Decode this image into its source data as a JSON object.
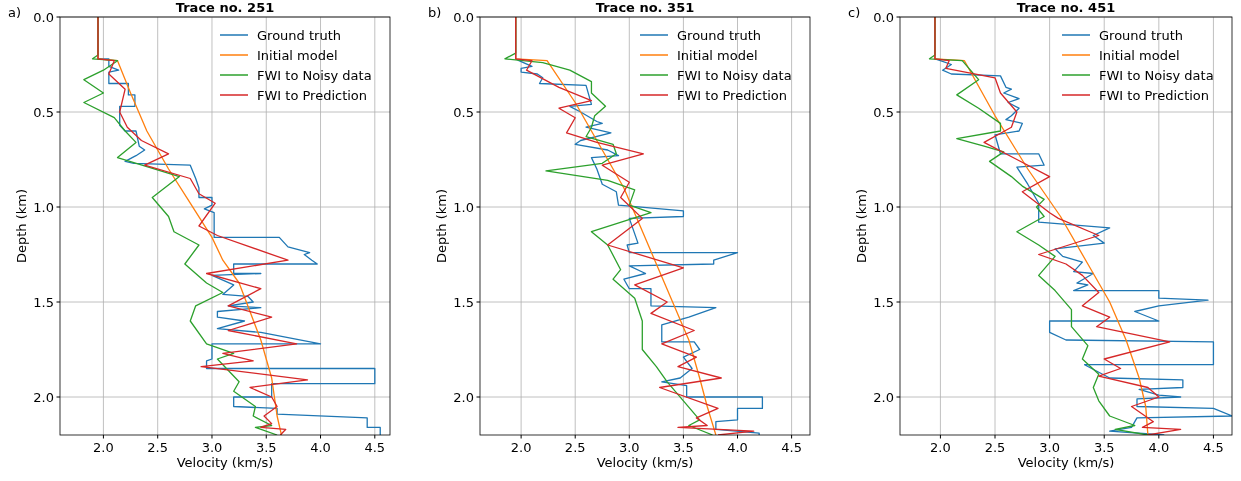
{
  "chart_data": [
    {
      "type": "line",
      "title": "Trace no. 251",
      "xlabel": "Velocity (km/s)",
      "ylabel": "Depth (km)",
      "annotations": [
        "a)"
      ],
      "xlim": [
        1.6,
        4.64
      ],
      "ylim": [
        2.2,
        0
      ],
      "xticks": [
        {
          "value": 2,
          "label": "2.0"
        },
        {
          "value": 2.5,
          "label": "2.5"
        },
        {
          "value": 3,
          "label": "3.0"
        },
        {
          "value": 3.5,
          "label": "3.5"
        },
        {
          "value": 4,
          "label": "4.0"
        },
        {
          "value": 4.5,
          "label": "4.5"
        }
      ],
      "yticks": [
        {
          "value": 0,
          "label": "0.0"
        },
        {
          "value": 0.5,
          "label": "0.5"
        },
        {
          "value": 1,
          "label": "1.0"
        },
        {
          "value": 1.5,
          "label": "1.5"
        },
        {
          "value": 2,
          "label": "2.0"
        }
      ],
      "grid": true,
      "legend": "top right",
      "marker": "none",
      "line_style": "solid",
      "series": [
        {
          "name": "Ground truth",
          "color": "#1f77b4",
          "x": [
            1.95,
            1.95,
            2.05,
            2.05,
            2.14,
            2.05,
            2.05,
            2.23,
            2.23,
            2.29,
            2.29,
            2.15,
            2.15,
            2.2,
            2.3,
            2.33,
            2.38,
            2.3,
            2.2,
            2.28,
            2.8,
            2.85,
            2.88,
            2.88,
            3.0,
            3.0,
            2.93,
            3.02,
            3.02,
            3.62,
            3.7,
            3.9,
            3.85,
            3.92,
            3.97,
            3.2,
            3.2,
            3.45,
            3.0,
            3.2,
            3.1,
            3.33,
            3.38,
            3.15,
            3.45,
            3.05,
            3.05,
            3.3,
            3.05,
            3.45,
            4.0,
            3.0,
            3.0,
            2.95,
            2.95,
            4.5,
            4.5,
            3.55,
            3.55,
            3.2,
            3.2,
            3.6,
            3.6,
            4.43,
            4.43,
            4.55,
            4.55
          ],
          "values": [
            0,
            0.22,
            0.22,
            0.26,
            0.28,
            0.29,
            0.35,
            0.35,
            0.41,
            0.41,
            0.47,
            0.47,
            0.57,
            0.6,
            0.6,
            0.68,
            0.7,
            0.73,
            0.76,
            0.77,
            0.78,
            0.85,
            0.9,
            0.95,
            0.95,
            0.99,
            1.01,
            1.03,
            1.16,
            1.16,
            1.21,
            1.24,
            1.25,
            1.28,
            1.3,
            1.3,
            1.35,
            1.35,
            1.36,
            1.41,
            1.46,
            1.47,
            1.5,
            1.52,
            1.53,
            1.55,
            1.58,
            1.6,
            1.64,
            1.66,
            1.72,
            1.72,
            1.8,
            1.81,
            1.85,
            1.85,
            1.93,
            1.93,
            2.0,
            2.0,
            2.05,
            2.06,
            2.09,
            2.11,
            2.16,
            2.16,
            2.2
          ]
        },
        {
          "name": "Initial model",
          "color": "#ff7f0e",
          "x": [
            1.95,
            1.95,
            2.13,
            2.25,
            2.4,
            2.6,
            2.8,
            3.0,
            3.1,
            3.25,
            3.35,
            3.45,
            3.55,
            3.6,
            3.64
          ],
          "values": [
            0,
            0.22,
            0.23,
            0.4,
            0.6,
            0.8,
            0.98,
            1.16,
            1.28,
            1.4,
            1.55,
            1.7,
            1.9,
            2.1,
            2.2
          ]
        },
        {
          "name": "FWI to Noisy data",
          "color": "#2ca02c",
          "x": [
            1.95,
            1.95,
            1.9,
            2.13,
            2.0,
            1.82,
            2.0,
            1.82,
            2.1,
            2.2,
            2.3,
            2.13,
            2.7,
            2.45,
            2.6,
            2.65,
            2.88,
            2.75,
            2.95,
            3.1,
            2.85,
            2.8,
            2.95,
            3.2,
            3.05,
            3.25,
            3.2,
            3.4,
            3.38,
            3.55,
            3.4,
            3.6
          ],
          "values": [
            0,
            0.2,
            0.22,
            0.23,
            0.28,
            0.33,
            0.4,
            0.45,
            0.53,
            0.6,
            0.66,
            0.74,
            0.84,
            0.95,
            1.05,
            1.13,
            1.2,
            1.3,
            1.4,
            1.45,
            1.52,
            1.6,
            1.72,
            1.77,
            1.8,
            1.92,
            1.97,
            2.05,
            2.1,
            2.15,
            2.16,
            2.2
          ]
        },
        {
          "name": "FWI to Prediction",
          "color": "#d62728",
          "x": [
            1.95,
            1.95,
            2.1,
            2.05,
            2.2,
            2.15,
            2.22,
            2.35,
            2.6,
            2.38,
            2.8,
            2.88,
            3.03,
            2.88,
            3.05,
            3.7,
            2.95,
            3.45,
            3.15,
            3.55,
            3.15,
            3.78,
            3.1,
            3.38,
            2.9,
            3.88,
            3.35,
            3.55,
            3.6,
            3.48,
            3.55,
            3.45,
            3.68,
            3.63
          ],
          "values": [
            0,
            0.22,
            0.23,
            0.3,
            0.38,
            0.5,
            0.58,
            0.65,
            0.72,
            0.78,
            0.85,
            0.93,
            0.98,
            1.1,
            1.15,
            1.28,
            1.35,
            1.43,
            1.52,
            1.58,
            1.65,
            1.72,
            1.77,
            1.81,
            1.84,
            1.91,
            1.95,
            2.0,
            2.05,
            2.1,
            2.14,
            2.16,
            2.17,
            2.2
          ]
        }
      ]
    },
    {
      "type": "line",
      "title": "Trace no. 351",
      "xlabel": "Velocity (km/s)",
      "ylabel": "Depth (km)",
      "annotations": [
        "b)"
      ],
      "xlim": [
        1.62,
        4.67
      ],
      "ylim": [
        2.2,
        0
      ],
      "xticks": [
        {
          "value": 2,
          "label": "2.0"
        },
        {
          "value": 2.5,
          "label": "2.5"
        },
        {
          "value": 3,
          "label": "3.0"
        },
        {
          "value": 3.5,
          "label": "3.5"
        },
        {
          "value": 4,
          "label": "4.0"
        },
        {
          "value": 4.5,
          "label": "4.5"
        }
      ],
      "yticks": [
        {
          "value": 0,
          "label": "0.0"
        },
        {
          "value": 0.5,
          "label": "0.5"
        },
        {
          "value": 1,
          "label": "1.0"
        },
        {
          "value": 1.5,
          "label": "1.5"
        },
        {
          "value": 2,
          "label": "2.0"
        }
      ],
      "grid": true,
      "legend": "top right",
      "marker": "none",
      "line_style": "solid",
      "series": [
        {
          "name": "Ground truth",
          "color": "#1f77b4",
          "x": [
            1.95,
            1.95,
            1.98,
            2.1,
            2.0,
            2.0,
            2.15,
            2.2,
            2.17,
            2.6,
            2.65,
            2.45,
            2.55,
            2.7,
            2.75,
            2.6,
            2.83,
            2.55,
            2.5,
            2.8,
            2.9,
            2.65,
            2.7,
            2.75,
            2.88,
            2.9,
            3.5,
            3.5,
            3.0,
            3.08,
            2.98,
            3.0,
            4.0,
            3.78,
            3.78,
            3.0,
            3.15,
            2.95,
            3.0,
            3.2,
            3.2,
            3.8,
            3.55,
            3.3,
            3.3,
            3.6,
            3.65,
            3.5,
            3.58,
            3.47,
            3.3,
            3.53,
            3.53,
            4.23,
            4.23,
            4.0,
            4.0,
            3.8,
            3.8,
            4.2,
            4.2
          ],
          "values": [
            0,
            0.22,
            0.23,
            0.26,
            0.27,
            0.29,
            0.3,
            0.32,
            0.35,
            0.36,
            0.46,
            0.47,
            0.5,
            0.55,
            0.56,
            0.58,
            0.61,
            0.65,
            0.67,
            0.7,
            0.73,
            0.74,
            0.8,
            0.88,
            0.92,
            0.99,
            1.02,
            1.05,
            1.06,
            1.19,
            1.2,
            1.24,
            1.24,
            1.28,
            1.3,
            1.31,
            1.35,
            1.38,
            1.43,
            1.43,
            1.52,
            1.53,
            1.58,
            1.62,
            1.71,
            1.71,
            1.75,
            1.79,
            1.85,
            1.9,
            1.92,
            1.94,
            2.0,
            2.0,
            2.06,
            2.06,
            2.12,
            2.13,
            2.17,
            2.19,
            2.2
          ]
        },
        {
          "name": "Initial model",
          "color": "#ff7f0e",
          "x": [
            1.95,
            1.95,
            2.24,
            2.5,
            2.75,
            2.95,
            3.1,
            3.25,
            3.4,
            3.55,
            3.65,
            3.72,
            3.8
          ],
          "values": [
            0,
            0.22,
            0.23,
            0.45,
            0.7,
            0.9,
            1.1,
            1.3,
            1.5,
            1.7,
            1.9,
            2.05,
            2.2
          ]
        },
        {
          "name": "FWI to Noisy data",
          "color": "#2ca02c",
          "x": [
            1.95,
            1.95,
            1.85,
            2.2,
            2.45,
            2.65,
            2.65,
            2.78,
            2.68,
            2.65,
            2.6,
            2.85,
            2.88,
            2.75,
            2.23,
            2.8,
            3.05,
            3.0,
            3.2,
            2.65,
            2.8,
            2.92,
            2.85,
            3.05,
            3.12,
            3.12,
            3.25,
            3.35,
            3.5,
            3.65,
            3.55,
            3.77
          ],
          "values": [
            0,
            0.19,
            0.22,
            0.24,
            0.28,
            0.34,
            0.4,
            0.47,
            0.52,
            0.58,
            0.63,
            0.67,
            0.72,
            0.77,
            0.81,
            0.86,
            0.91,
            0.99,
            1.03,
            1.13,
            1.2,
            1.33,
            1.38,
            1.48,
            1.6,
            1.75,
            1.84,
            1.92,
            2.02,
            2.12,
            2.15,
            2.2
          ]
        },
        {
          "name": "FWI to Prediction",
          "color": "#d62728",
          "x": [
            1.95,
            1.95,
            2.1,
            2.05,
            2.35,
            2.65,
            2.35,
            2.5,
            2.42,
            2.7,
            3.13,
            2.75,
            3.0,
            2.92,
            3.12,
            2.8,
            3.5,
            3.05,
            3.35,
            3.2,
            3.6,
            3.3,
            3.62,
            3.45,
            3.85,
            3.28,
            3.82,
            3.62,
            3.72,
            3.45,
            4.15,
            3.82
          ],
          "values": [
            0,
            0.22,
            0.23,
            0.28,
            0.37,
            0.44,
            0.48,
            0.53,
            0.61,
            0.66,
            0.72,
            0.78,
            0.87,
            0.95,
            1.06,
            1.2,
            1.32,
            1.41,
            1.5,
            1.56,
            1.65,
            1.72,
            1.79,
            1.84,
            1.9,
            1.95,
            2.06,
            2.11,
            2.15,
            2.16,
            2.18,
            2.2
          ]
        }
      ]
    },
    {
      "type": "line",
      "title": "Trace no. 451",
      "xlabel": "Velocity (km/s)",
      "ylabel": "Depth (km)",
      "annotations": [
        "c)"
      ],
      "xlim": [
        1.63,
        4.67
      ],
      "ylim": [
        2.2,
        0
      ],
      "xticks": [
        {
          "value": 2,
          "label": "2.0"
        },
        {
          "value": 2.5,
          "label": "2.5"
        },
        {
          "value": 3,
          "label": "3.0"
        },
        {
          "value": 3.5,
          "label": "3.5"
        },
        {
          "value": 4,
          "label": "4.0"
        },
        {
          "value": 4.5,
          "label": "4.5"
        }
      ],
      "yticks": [
        {
          "value": 0,
          "label": "0.0"
        },
        {
          "value": 0.5,
          "label": "0.5"
        },
        {
          "value": 1,
          "label": "1.0"
        },
        {
          "value": 1.5,
          "label": "1.5"
        },
        {
          "value": 2,
          "label": "2.0"
        }
      ],
      "grid": true,
      "legend": "top right",
      "marker": "none",
      "line_style": "solid",
      "series": [
        {
          "name": "Ground truth",
          "color": "#1f77b4",
          "x": [
            1.95,
            1.95,
            2.0,
            2.1,
            2.02,
            2.1,
            2.55,
            2.6,
            2.65,
            2.58,
            2.72,
            2.62,
            2.72,
            2.65,
            2.6,
            2.75,
            2.72,
            2.5,
            2.55,
            2.9,
            2.95,
            2.7,
            2.8,
            2.9,
            2.9,
            3.55,
            3.4,
            3.5,
            3.05,
            3.12,
            3.3,
            3.22,
            3.4,
            3.25,
            3.35,
            3.22,
            4.0,
            4.0,
            4.45,
            4.0,
            3.78,
            4.0,
            3.0,
            3.0,
            3.15,
            4.5,
            4.5,
            3.32,
            3.55,
            4.22,
            4.22,
            3.82,
            4.0,
            4.2,
            3.8,
            3.8,
            4.5,
            4.67,
            3.8,
            3.75,
            3.55,
            4.05
          ],
          "values": [
            0,
            0.22,
            0.23,
            0.25,
            0.28,
            0.3,
            0.31,
            0.37,
            0.38,
            0.4,
            0.43,
            0.45,
            0.48,
            0.52,
            0.54,
            0.56,
            0.6,
            0.62,
            0.72,
            0.72,
            0.78,
            0.79,
            0.88,
            0.98,
            1.08,
            1.11,
            1.15,
            1.19,
            1.22,
            1.26,
            1.29,
            1.34,
            1.35,
            1.4,
            1.41,
            1.44,
            1.44,
            1.48,
            1.49,
            1.52,
            1.55,
            1.6,
            1.6,
            1.66,
            1.7,
            1.71,
            1.83,
            1.83,
            1.9,
            1.91,
            1.95,
            1.96,
            1.99,
            2.0,
            2.01,
            2.05,
            2.06,
            2.1,
            2.11,
            2.16,
            2.18,
            2.2
          ]
        },
        {
          "name": "Initial model",
          "color": "#ff7f0e",
          "x": [
            1.95,
            1.95,
            2.22,
            2.5,
            2.8,
            3.1,
            3.35,
            3.55,
            3.7,
            3.82,
            3.88,
            3.9
          ],
          "values": [
            0,
            0.22,
            0.23,
            0.52,
            0.8,
            1.05,
            1.3,
            1.5,
            1.7,
            1.9,
            2.05,
            2.2
          ]
        },
        {
          "name": "FWI to Noisy data",
          "color": "#2ca02c",
          "x": [
            1.95,
            1.95,
            1.9,
            2.2,
            2.35,
            2.15,
            2.35,
            2.55,
            2.55,
            2.15,
            2.4,
            2.58,
            2.45,
            2.65,
            2.75,
            2.95,
            2.88,
            2.95,
            2.7,
            2.9,
            3.05,
            2.9,
            3.05,
            3.2,
            3.2,
            3.35,
            3.3,
            3.45,
            3.4,
            3.45,
            3.55,
            3.78,
            3.6,
            3.9
          ],
          "values": [
            0,
            0.2,
            0.22,
            0.23,
            0.33,
            0.41,
            0.48,
            0.56,
            0.6,
            0.64,
            0.68,
            0.71,
            0.76,
            0.84,
            0.89,
            0.96,
            1.0,
            1.05,
            1.13,
            1.2,
            1.26,
            1.36,
            1.44,
            1.54,
            1.63,
            1.73,
            1.8,
            1.88,
            1.95,
            2.02,
            2.1,
            2.15,
            2.17,
            2.2
          ]
        },
        {
          "name": "FWI to Prediction",
          "color": "#d62728",
          "x": [
            1.95,
            1.95,
            2.08,
            2.05,
            2.5,
            2.55,
            2.7,
            2.65,
            2.4,
            2.7,
            3.0,
            2.75,
            3.0,
            3.08,
            3.45,
            2.9,
            3.15,
            3.3,
            3.45,
            3.3,
            3.55,
            3.43,
            4.1,
            3.5,
            3.65,
            3.45,
            3.9,
            4.0,
            3.75,
            3.95,
            3.85,
            4.2,
            3.9
          ],
          "values": [
            0,
            0.22,
            0.23,
            0.27,
            0.32,
            0.4,
            0.5,
            0.58,
            0.66,
            0.75,
            0.84,
            0.92,
            1.03,
            1.06,
            1.15,
            1.25,
            1.3,
            1.36,
            1.45,
            1.52,
            1.58,
            1.63,
            1.71,
            1.8,
            1.85,
            1.89,
            1.95,
            2.0,
            2.05,
            2.13,
            2.16,
            2.17,
            2.2
          ]
        }
      ]
    }
  ]
}
